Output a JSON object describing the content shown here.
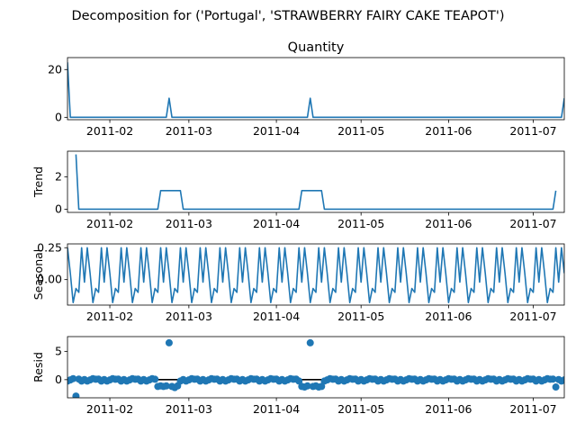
{
  "figure": {
    "title": "Decomposition for ('Portugal', 'STRAWBERRY FAIRY CAKE TEAPOT')"
  },
  "chart_data": [
    {
      "panel": "observed",
      "type": "line",
      "title": "Quantity",
      "ylabel": "",
      "xlim": [
        "2011-01-17",
        "2011-07-12"
      ],
      "ylim": [
        -1,
        25
      ],
      "yticks": [
        0,
        20
      ],
      "xtick_labels": [
        "2011-02",
        "2011-03",
        "2011-04",
        "2011-05",
        "2011-06",
        "2011-07"
      ],
      "color": "#1f77b4",
      "points": [
        [
          "2011-01-17",
          23
        ],
        [
          "2011-01-18",
          0
        ],
        [
          "2011-02-21",
          0
        ],
        [
          "2011-02-22",
          8
        ],
        [
          "2011-02-23",
          0
        ],
        [
          "2011-04-12",
          0
        ],
        [
          "2011-04-13",
          8
        ],
        [
          "2011-04-14",
          0
        ],
        [
          "2011-07-11",
          0
        ],
        [
          "2011-07-12",
          8
        ]
      ]
    },
    {
      "panel": "trend",
      "type": "line",
      "title": "",
      "ylabel": "Trend",
      "xlim": [
        "2011-01-17",
        "2011-07-12"
      ],
      "ylim": [
        -0.2,
        3.6
      ],
      "yticks": [
        0,
        2
      ],
      "xtick_labels": [
        "2011-02",
        "2011-03",
        "2011-04",
        "2011-05",
        "2011-06",
        "2011-07"
      ],
      "color": "#1f77b4",
      "points": [
        [
          "2011-01-20",
          3.4
        ],
        [
          "2011-01-21",
          0
        ],
        [
          "2011-02-18",
          0
        ],
        [
          "2011-02-19",
          1.15
        ],
        [
          "2011-02-26",
          1.15
        ],
        [
          "2011-02-27",
          0
        ],
        [
          "2011-04-09",
          0
        ],
        [
          "2011-04-10",
          1.15
        ],
        [
          "2011-04-17",
          1.15
        ],
        [
          "2011-04-18",
          0
        ],
        [
          "2011-07-08",
          0
        ],
        [
          "2011-07-09",
          1.15
        ]
      ]
    },
    {
      "panel": "seasonal",
      "type": "line",
      "title": "",
      "ylabel": "Seasonal",
      "xlim": [
        "2011-01-17",
        "2011-07-12"
      ],
      "ylim": [
        -0.2,
        0.28
      ],
      "yticks": [
        0.25,
        0.0
      ],
      "xtick_labels": [
        "2011-02",
        "2011-03",
        "2011-04",
        "2011-05",
        "2011-06",
        "2011-07"
      ],
      "color": "#1f77b4",
      "period_days": 7,
      "weekly_pattern": [
        0.25,
        0.05,
        -0.18,
        -0.07,
        -0.1,
        0.25,
        -0.02
      ]
    },
    {
      "panel": "resid",
      "type": "scatter",
      "title": "",
      "ylabel": "Resid",
      "xlim": [
        "2011-01-17",
        "2011-07-12"
      ],
      "ylim": [
        -3.2,
        7.6
      ],
      "yticks": [
        0,
        5
      ],
      "xtick_labels": [
        "2011-02",
        "2011-03",
        "2011-04",
        "2011-05",
        "2011-06",
        "2011-07"
      ],
      "color": "#1f77b4",
      "baseline": 0,
      "weekly_pattern": [
        -0.25,
        -0.05,
        0.18,
        0.07,
        0.1,
        -0.25,
        0.02
      ],
      "overrides": [
        [
          "2011-01-20",
          -2.9
        ],
        [
          "2011-02-18",
          -1.2
        ],
        [
          "2011-02-19",
          -1.1
        ],
        [
          "2011-02-20",
          -1.2
        ],
        [
          "2011-02-21",
          -1.1
        ],
        [
          "2011-02-22",
          6.5
        ],
        [
          "2011-02-23",
          -1.2
        ],
        [
          "2011-02-24",
          -1.4
        ],
        [
          "2011-02-25",
          -1.1
        ],
        [
          "2011-04-10",
          -1.2
        ],
        [
          "2011-04-11",
          -1.3
        ],
        [
          "2011-04-12",
          -1.1
        ],
        [
          "2011-04-13",
          6.5
        ],
        [
          "2011-04-14",
          -1.2
        ],
        [
          "2011-04-15",
          -1.1
        ],
        [
          "2011-04-16",
          -1.3
        ],
        [
          "2011-04-17",
          -1.2
        ],
        [
          "2011-07-09",
          -1.3
        ]
      ]
    }
  ]
}
